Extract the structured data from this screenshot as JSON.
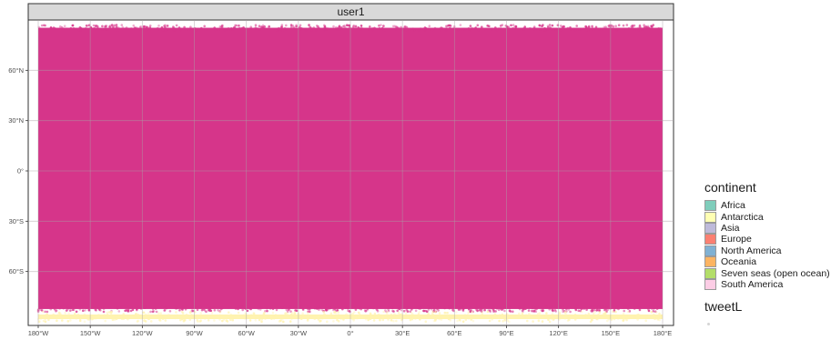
{
  "chart_data": {
    "type": "scatter",
    "facet_label": "user1",
    "title": "",
    "xlabel": "",
    "ylabel": "",
    "xlim": [
      -180,
      180
    ],
    "ylim": [
      -90,
      90
    ],
    "grid": true,
    "x_ticks": [
      {
        "value": -180,
        "label": "180°W"
      },
      {
        "value": -150,
        "label": "150°W"
      },
      {
        "value": -120,
        "label": "120°W"
      },
      {
        "value": -90,
        "label": "90°W"
      },
      {
        "value": -60,
        "label": "60°W"
      },
      {
        "value": -30,
        "label": "30°W"
      },
      {
        "value": 0,
        "label": "0°"
      },
      {
        "value": 30,
        "label": "30°E"
      },
      {
        "value": 60,
        "label": "60°E"
      },
      {
        "value": 90,
        "label": "90°E"
      },
      {
        "value": 120,
        "label": "120°E"
      },
      {
        "value": 150,
        "label": "150°E"
      },
      {
        "value": 180,
        "label": "180°E"
      }
    ],
    "y_ticks": [
      {
        "value": 60,
        "label": "60°N"
      },
      {
        "value": 30,
        "label": "30°N"
      },
      {
        "value": 0,
        "label": "0°"
      },
      {
        "value": -30,
        "label": "30°S"
      },
      {
        "value": -60,
        "label": "60°S"
      }
    ],
    "points_note_color": "#d63384",
    "series": [
      {
        "name": "South America",
        "color": "#d6358a",
        "lon_range": [
          -180,
          180
        ],
        "lat_range": [
          -84,
          87
        ]
      },
      {
        "name": "Antarctica",
        "color": "#fff3b0",
        "lon_range": [
          -180,
          180
        ],
        "lat_range": [
          -90,
          -84
        ]
      }
    ],
    "legend": {
      "position": "right",
      "title": "continent",
      "items": [
        {
          "label": "Africa",
          "color": "#7fcdbb"
        },
        {
          "label": "Antarctica",
          "color": "#ffffb3"
        },
        {
          "label": "Asia",
          "color": "#bebada"
        },
        {
          "label": "Europe",
          "color": "#fb8072"
        },
        {
          "label": "North America",
          "color": "#80b1d3"
        },
        {
          "label": "Oceania",
          "color": "#fdb462"
        },
        {
          "label": "Seven seas (open ocean)",
          "color": "#b3de69"
        },
        {
          "label": "South America",
          "color": "#fccde5"
        }
      ],
      "size_title": "tweetL"
    },
    "panel_background": "#ffffff",
    "grid_color": "#cccccc",
    "strip_fill": "#d9d9d9"
  }
}
